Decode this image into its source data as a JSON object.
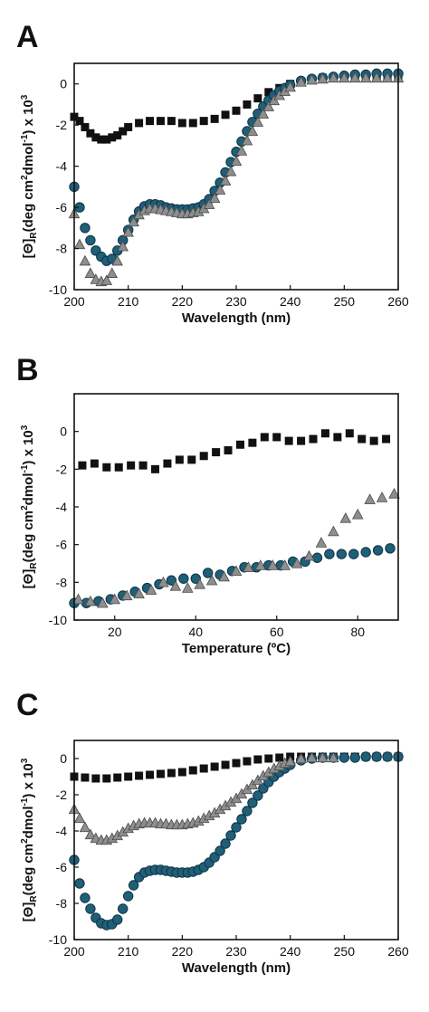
{
  "colors": {
    "square": "#111111",
    "circle": "#1f5f78",
    "circle_edge": "#0d3344",
    "triangle": "#8e8e8e",
    "triangle_edge": "#4a4a4a"
  },
  "chart_data": [
    {
      "type": "scatter",
      "panel": "A",
      "xlabel": "Wavelength (nm)",
      "ylabel": {
        "sym": "[Θ]",
        "sub": "R",
        "mid": "(deg cm",
        "sup1": "2",
        "mid2": "dmol",
        "sup2": "-1",
        "mid3": ") x 10",
        "sup3": "3"
      },
      "xlim": [
        200,
        260
      ],
      "ylim": [
        -10,
        1
      ],
      "xticks": [
        200,
        210,
        220,
        230,
        240,
        250,
        260
      ],
      "yticks": [
        0,
        -2,
        -4,
        -6,
        -8,
        -10
      ],
      "grid": false,
      "series": [
        {
          "marker": "square",
          "x": [
            200,
            201,
            202,
            203,
            204,
            205,
            206,
            207,
            208,
            209,
            210,
            212,
            214,
            216,
            218,
            220,
            222,
            224,
            226,
            228,
            230,
            232,
            234,
            236,
            238,
            240,
            242,
            244,
            246,
            248,
            250,
            252,
            254,
            256,
            258,
            260
          ],
          "y": [
            -1.6,
            -1.8,
            -2.1,
            -2.4,
            -2.6,
            -2.7,
            -2.7,
            -2.6,
            -2.5,
            -2.3,
            -2.1,
            -1.9,
            -1.8,
            -1.8,
            -1.8,
            -1.9,
            -1.9,
            -1.8,
            -1.7,
            -1.5,
            -1.3,
            -1.0,
            -0.7,
            -0.4,
            -0.2,
            0.0,
            0.1,
            0.2,
            0.3,
            0.3,
            0.3,
            0.4,
            0.4,
            0.4,
            0.4,
            0.4
          ]
        },
        {
          "marker": "circle",
          "x": [
            200,
            201,
            202,
            203,
            204,
            205,
            206,
            207,
            208,
            209,
            210,
            211,
            212,
            213,
            214,
            215,
            216,
            217,
            218,
            219,
            220,
            221,
            222,
            223,
            224,
            225,
            226,
            227,
            228,
            229,
            230,
            231,
            232,
            233,
            234,
            235,
            236,
            237,
            238,
            239,
            240,
            242,
            244,
            246,
            248,
            250,
            252,
            254,
            256,
            258,
            260
          ],
          "y": [
            -5.0,
            -6.0,
            -7.0,
            -7.6,
            -8.1,
            -8.4,
            -8.6,
            -8.5,
            -8.1,
            -7.6,
            -7.1,
            -6.6,
            -6.2,
            -5.95,
            -5.85,
            -5.85,
            -5.9,
            -6.0,
            -6.05,
            -6.1,
            -6.1,
            -6.1,
            -6.05,
            -6.0,
            -5.85,
            -5.6,
            -5.2,
            -4.8,
            -4.3,
            -3.8,
            -3.3,
            -2.8,
            -2.3,
            -1.85,
            -1.45,
            -1.1,
            -0.8,
            -0.55,
            -0.35,
            -0.2,
            -0.05,
            0.15,
            0.25,
            0.3,
            0.35,
            0.4,
            0.45,
            0.45,
            0.5,
            0.5,
            0.5
          ]
        },
        {
          "marker": "triangle",
          "x": [
            200,
            201,
            202,
            203,
            204,
            205,
            206,
            207,
            208,
            209,
            210,
            211,
            212,
            213,
            214,
            215,
            216,
            217,
            218,
            219,
            220,
            221,
            222,
            223,
            224,
            225,
            226,
            227,
            228,
            229,
            230,
            231,
            232,
            233,
            234,
            235,
            236,
            237,
            238,
            239,
            240,
            242,
            244,
            246,
            248,
            250,
            252,
            254,
            256,
            258,
            260
          ],
          "y": [
            -6.3,
            -7.8,
            -8.6,
            -9.2,
            -9.5,
            -9.6,
            -9.55,
            -9.2,
            -8.6,
            -7.9,
            -7.2,
            -6.7,
            -6.35,
            -6.15,
            -6.05,
            -6.05,
            -6.1,
            -6.15,
            -6.2,
            -6.25,
            -6.3,
            -6.3,
            -6.25,
            -6.2,
            -6.05,
            -5.85,
            -5.55,
            -5.15,
            -4.7,
            -4.25,
            -3.75,
            -3.25,
            -2.75,
            -2.3,
            -1.85,
            -1.45,
            -1.1,
            -0.8,
            -0.55,
            -0.35,
            -0.15,
            0.1,
            0.2,
            0.25,
            0.3,
            0.3,
            0.3,
            0.3,
            0.3,
            0.3,
            0.3
          ]
        }
      ]
    },
    {
      "type": "scatter",
      "panel": "B",
      "xlabel": "Temperature (ºC)",
      "ylabel": {
        "sym": "[Θ]",
        "sub": "R",
        "mid": "(deg cm",
        "sup1": "2",
        "mid2": "dmol",
        "sup2": "-1",
        "mid3": ") x 10",
        "sup3": "3"
      },
      "xlim": [
        10,
        90
      ],
      "ylim": [
        -10,
        2
      ],
      "xticks": [
        20,
        40,
        60,
        80
      ],
      "yticks": [
        0,
        -2,
        -4,
        -6,
        -8,
        -10
      ],
      "grid": false,
      "series": [
        {
          "marker": "square",
          "x": [
            12,
            15,
            18,
            21,
            24,
            27,
            30,
            33,
            36,
            39,
            42,
            45,
            48,
            51,
            54,
            57,
            60,
            63,
            66,
            69,
            72,
            75,
            78,
            81,
            84,
            87
          ],
          "y": [
            -1.8,
            -1.7,
            -1.9,
            -1.9,
            -1.8,
            -1.8,
            -2.0,
            -1.7,
            -1.5,
            -1.5,
            -1.3,
            -1.1,
            -1.0,
            -0.7,
            -0.6,
            -0.3,
            -0.3,
            -0.5,
            -0.5,
            -0.4,
            -0.1,
            -0.3,
            -0.1,
            -0.4,
            -0.5,
            -0.4
          ]
        },
        {
          "marker": "circle",
          "x": [
            10,
            13,
            16,
            19,
            22,
            25,
            28,
            31,
            34,
            37,
            40,
            43,
            46,
            49,
            52,
            55,
            58,
            61,
            64,
            67,
            70,
            73,
            76,
            79,
            82,
            85,
            88
          ],
          "y": [
            -9.1,
            -9.1,
            -9.0,
            -8.9,
            -8.7,
            -8.5,
            -8.3,
            -8.1,
            -7.9,
            -7.8,
            -7.8,
            -7.5,
            -7.6,
            -7.4,
            -7.2,
            -7.2,
            -7.1,
            -7.1,
            -6.9,
            -6.9,
            -6.7,
            -6.5,
            -6.5,
            -6.5,
            -6.4,
            -6.3,
            -6.2
          ]
        },
        {
          "marker": "triangle",
          "x": [
            11,
            14,
            17,
            20,
            23,
            26,
            29,
            32,
            35,
            38,
            41,
            44,
            47,
            50,
            53,
            56,
            59,
            62,
            65,
            68,
            71,
            74,
            77,
            80,
            83,
            86,
            89
          ],
          "y": [
            -8.9,
            -9.0,
            -9.1,
            -8.9,
            -8.7,
            -8.6,
            -8.4,
            -8.0,
            -8.2,
            -8.3,
            -8.1,
            -7.9,
            -7.7,
            -7.4,
            -7.2,
            -7.1,
            -7.1,
            -7.1,
            -7.0,
            -6.6,
            -5.9,
            -5.3,
            -4.6,
            -4.4,
            -3.6,
            -3.5,
            -3.3
          ]
        }
      ]
    },
    {
      "type": "scatter",
      "panel": "C",
      "xlabel": "Wavelength (nm)",
      "ylabel": {
        "sym": "[Θ]",
        "sub": "R",
        "mid": "(deg cm",
        "sup1": "2",
        "mid2": "dmol",
        "sup2": "-1",
        "mid3": ") x 10",
        "sup3": "3"
      },
      "xlim": [
        200,
        260
      ],
      "ylim": [
        -10,
        1
      ],
      "xticks": [
        200,
        210,
        220,
        230,
        240,
        250,
        260
      ],
      "yticks": [
        0,
        -2,
        -4,
        -6,
        -8,
        -10
      ],
      "grid": false,
      "series": [
        {
          "marker": "square",
          "x": [
            200,
            202,
            204,
            206,
            208,
            210,
            212,
            214,
            216,
            218,
            220,
            222,
            224,
            226,
            228,
            230,
            232,
            234,
            236,
            238,
            240,
            242,
            244,
            246,
            248,
            250,
            252,
            254,
            256,
            258,
            260
          ],
          "y": [
            -1.0,
            -1.05,
            -1.1,
            -1.1,
            -1.05,
            -1.0,
            -0.95,
            -0.9,
            -0.85,
            -0.8,
            -0.75,
            -0.65,
            -0.55,
            -0.45,
            -0.35,
            -0.25,
            -0.15,
            -0.05,
            0.0,
            0.05,
            0.1,
            0.1,
            0.1,
            0.1,
            0.1,
            0.1,
            0.1,
            0.1,
            0.1,
            0.1,
            0.1
          ]
        },
        {
          "marker": "circle",
          "x": [
            200,
            201,
            202,
            203,
            204,
            205,
            206,
            207,
            208,
            209,
            210,
            211,
            212,
            213,
            214,
            215,
            216,
            217,
            218,
            219,
            220,
            221,
            222,
            223,
            224,
            225,
            226,
            227,
            228,
            229,
            230,
            231,
            232,
            233,
            234,
            235,
            236,
            237,
            238,
            239,
            240,
            242,
            244,
            246,
            248,
            250,
            252,
            254,
            256,
            258,
            260
          ],
          "y": [
            -5.6,
            -6.9,
            -7.7,
            -8.3,
            -8.8,
            -9.1,
            -9.2,
            -9.15,
            -8.9,
            -8.3,
            -7.6,
            -7.0,
            -6.55,
            -6.3,
            -6.2,
            -6.15,
            -6.15,
            -6.2,
            -6.25,
            -6.3,
            -6.3,
            -6.3,
            -6.25,
            -6.15,
            -6.0,
            -5.75,
            -5.45,
            -5.1,
            -4.7,
            -4.25,
            -3.8,
            -3.35,
            -2.9,
            -2.45,
            -2.05,
            -1.65,
            -1.3,
            -1.0,
            -0.75,
            -0.55,
            -0.35,
            -0.1,
            0.0,
            0.05,
            0.05,
            0.05,
            0.05,
            0.1,
            0.1,
            0.1,
            0.1
          ]
        },
        {
          "marker": "triangle",
          "x": [
            200,
            201,
            202,
            203,
            204,
            205,
            206,
            207,
            208,
            209,
            210,
            211,
            212,
            213,
            214,
            215,
            216,
            217,
            218,
            219,
            220,
            221,
            222,
            223,
            224,
            225,
            226,
            227,
            228,
            229,
            230,
            231,
            232,
            233,
            234,
            235,
            236,
            237,
            238,
            239,
            240,
            242,
            244,
            246,
            248
          ],
          "y": [
            -2.8,
            -3.3,
            -3.8,
            -4.2,
            -4.4,
            -4.5,
            -4.5,
            -4.4,
            -4.25,
            -4.05,
            -3.85,
            -3.7,
            -3.6,
            -3.55,
            -3.55,
            -3.55,
            -3.6,
            -3.6,
            -3.65,
            -3.65,
            -3.65,
            -3.6,
            -3.55,
            -3.45,
            -3.3,
            -3.15,
            -3.0,
            -2.8,
            -2.6,
            -2.4,
            -2.2,
            -1.95,
            -1.7,
            -1.45,
            -1.2,
            -0.95,
            -0.75,
            -0.55,
            -0.4,
            -0.25,
            -0.15,
            0.0,
            0.05,
            0.05,
            0.05
          ]
        }
      ]
    }
  ]
}
